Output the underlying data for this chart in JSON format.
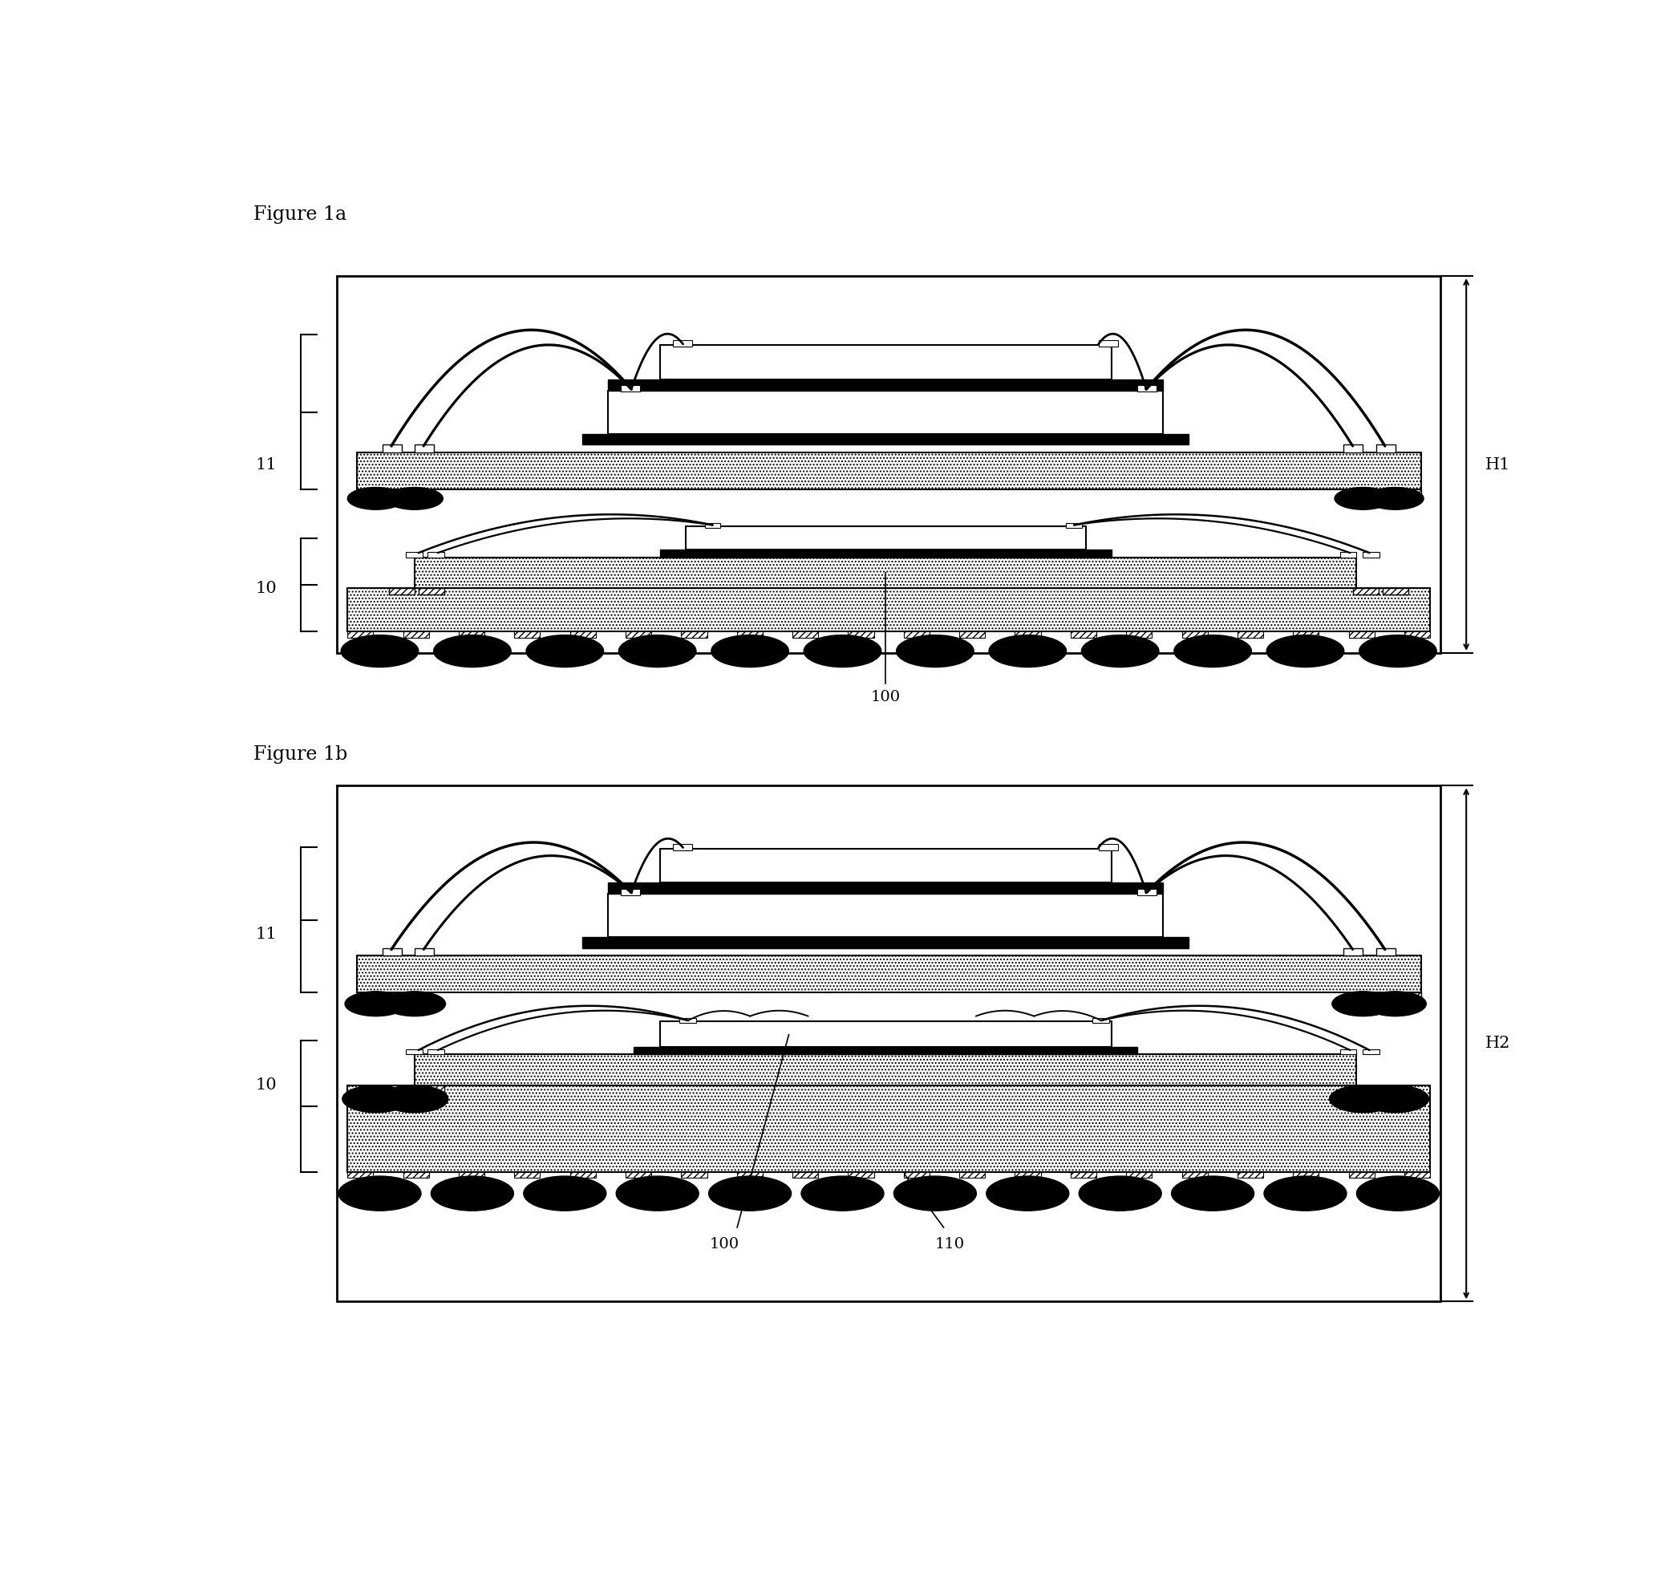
{
  "fig_width": 20.76,
  "fig_height": 19.57,
  "bg_color": "#ffffff",
  "line_color": "#000000",
  "fig1a_label": "Figure 1a",
  "fig1b_label": "Figure 1b",
  "label_11a": "11",
  "label_10a": "10",
  "label_H1": "H1",
  "label_100a": "100",
  "label_11b": "11",
  "label_10b": "10",
  "label_H2": "H2",
  "label_100b": "100",
  "label_110": "110"
}
